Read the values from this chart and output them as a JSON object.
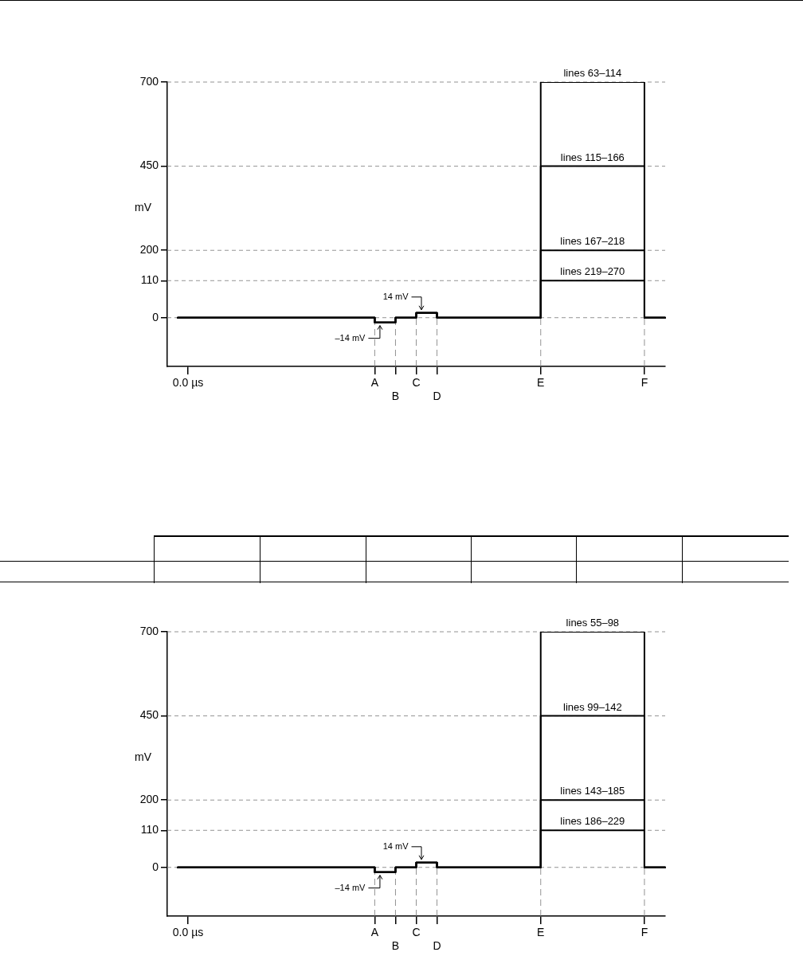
{
  "chart_data": [
    {
      "type": "step",
      "categories": [
        null,
        null,
        "0.0 µs",
        null,
        null,
        null,
        null,
        null,
        null,
        null,
        null,
        null,
        null,
        null,
        null,
        null,
        null,
        null,
        null,
        null,
        "A",
        null,
        "B",
        null,
        "C",
        null,
        "D",
        null,
        null,
        null,
        null,
        null,
        null,
        null,
        null,
        null,
        "E",
        null,
        null,
        null,
        null,
        null,
        null,
        null,
        null,
        null,
        "F",
        null,
        null
      ],
      "ylabel": "mV",
      "ylim": [
        -145,
        700
      ],
      "yticks": [
        0,
        110,
        200,
        450,
        700
      ],
      "grid": "y",
      "legend": false,
      "marker": "none",
      "line_style": "solid",
      "ref_lines": [
        {
          "axis": "x",
          "value": "A",
          "color": "#777777",
          "line_style": "dashed"
        },
        {
          "axis": "x",
          "value": "B",
          "color": "#777777",
          "line_style": "dashed"
        },
        {
          "axis": "x",
          "value": "C",
          "color": "#777777",
          "line_style": "dashed"
        },
        {
          "axis": "x",
          "value": "D",
          "color": "#777777",
          "line_style": "dashed"
        },
        {
          "axis": "x",
          "value": "E",
          "color": "#777777",
          "line_style": "dashed"
        },
        {
          "axis": "x",
          "value": "F",
          "color": "#777777",
          "line_style": "dashed"
        }
      ],
      "annotations": [
        {
          "text": "–14 mV",
          "x": "A",
          "y": -14
        },
        {
          "text": "14 mV",
          "x": "C",
          "y": 14
        }
      ],
      "series": [
        {
          "name": "lines 63–114",
          "color": "#000000",
          "values": [
            null,
            0,
            0,
            0,
            0,
            0,
            0,
            0,
            0,
            0,
            0,
            0,
            0,
            0,
            0,
            0,
            0,
            0,
            0,
            0,
            -14,
            -14,
            0,
            0,
            14,
            14,
            0,
            0,
            0,
            0,
            0,
            0,
            0,
            0,
            0,
            0,
            700,
            700,
            700,
            700,
            700,
            700,
            700,
            700,
            700,
            700,
            0,
            0,
            0
          ]
        },
        {
          "name": "lines 115–166",
          "color": "#000000",
          "values": [
            null,
            0,
            0,
            0,
            0,
            0,
            0,
            0,
            0,
            0,
            0,
            0,
            0,
            0,
            0,
            0,
            0,
            0,
            0,
            0,
            -14,
            -14,
            0,
            0,
            14,
            14,
            0,
            0,
            0,
            0,
            0,
            0,
            0,
            0,
            0,
            0,
            450,
            450,
            450,
            450,
            450,
            450,
            450,
            450,
            450,
            450,
            0,
            0,
            0
          ]
        },
        {
          "name": "lines 167–218",
          "color": "#000000",
          "values": [
            null,
            0,
            0,
            0,
            0,
            0,
            0,
            0,
            0,
            0,
            0,
            0,
            0,
            0,
            0,
            0,
            0,
            0,
            0,
            0,
            -14,
            -14,
            0,
            0,
            14,
            14,
            0,
            0,
            0,
            0,
            0,
            0,
            0,
            0,
            0,
            0,
            200,
            200,
            200,
            200,
            200,
            200,
            200,
            200,
            200,
            200,
            0,
            0,
            0
          ]
        },
        {
          "name": "lines 219–270",
          "color": "#000000",
          "values": [
            null,
            0,
            0,
            0,
            0,
            0,
            0,
            0,
            0,
            0,
            0,
            0,
            0,
            0,
            0,
            0,
            0,
            0,
            0,
            0,
            -14,
            -14,
            0,
            0,
            14,
            14,
            0,
            0,
            0,
            0,
            0,
            0,
            0,
            0,
            0,
            0,
            110,
            110,
            110,
            110,
            110,
            110,
            110,
            110,
            110,
            110,
            0,
            0,
            0
          ]
        }
      ]
    },
    {
      "type": "step",
      "categories": [
        null,
        null,
        "0.0 µs",
        null,
        null,
        null,
        null,
        null,
        null,
        null,
        null,
        null,
        null,
        null,
        null,
        null,
        null,
        null,
        null,
        null,
        "A",
        null,
        "B",
        null,
        "C",
        null,
        "D",
        null,
        null,
        null,
        null,
        null,
        null,
        null,
        null,
        null,
        "E",
        null,
        null,
        null,
        null,
        null,
        null,
        null,
        null,
        null,
        "F",
        null,
        null
      ],
      "ylabel": "mV",
      "ylim": [
        -145,
        700
      ],
      "yticks": [
        0,
        110,
        200,
        450,
        700
      ],
      "grid": "y",
      "legend": false,
      "marker": "none",
      "line_style": "solid",
      "ref_lines": [
        {
          "axis": "x",
          "value": "A",
          "color": "#777777",
          "line_style": "dashed"
        },
        {
          "axis": "x",
          "value": "B",
          "color": "#777777",
          "line_style": "dashed"
        },
        {
          "axis": "x",
          "value": "C",
          "color": "#777777",
          "line_style": "dashed"
        },
        {
          "axis": "x",
          "value": "D",
          "color": "#777777",
          "line_style": "dashed"
        },
        {
          "axis": "x",
          "value": "E",
          "color": "#777777",
          "line_style": "dashed"
        },
        {
          "axis": "x",
          "value": "F",
          "color": "#777777",
          "line_style": "dashed"
        }
      ],
      "annotations": [
        {
          "text": "–14 mV",
          "x": "A",
          "y": -14
        },
        {
          "text": "14 mV",
          "x": "C",
          "y": 14
        }
      ],
      "series": [
        {
          "name": "lines 55–98",
          "color": "#000000",
          "values": [
            null,
            0,
            0,
            0,
            0,
            0,
            0,
            0,
            0,
            0,
            0,
            0,
            0,
            0,
            0,
            0,
            0,
            0,
            0,
            0,
            -14,
            -14,
            0,
            0,
            14,
            14,
            0,
            0,
            0,
            0,
            0,
            0,
            0,
            0,
            0,
            0,
            700,
            700,
            700,
            700,
            700,
            700,
            700,
            700,
            700,
            700,
            0,
            0,
            0
          ]
        },
        {
          "name": "lines 99–142",
          "color": "#000000",
          "values": [
            null,
            0,
            0,
            0,
            0,
            0,
            0,
            0,
            0,
            0,
            0,
            0,
            0,
            0,
            0,
            0,
            0,
            0,
            0,
            0,
            -14,
            -14,
            0,
            0,
            14,
            14,
            0,
            0,
            0,
            0,
            0,
            0,
            0,
            0,
            0,
            0,
            450,
            450,
            450,
            450,
            450,
            450,
            450,
            450,
            450,
            450,
            0,
            0,
            0
          ]
        },
        {
          "name": "lines 143–185",
          "color": "#000000",
          "values": [
            null,
            0,
            0,
            0,
            0,
            0,
            0,
            0,
            0,
            0,
            0,
            0,
            0,
            0,
            0,
            0,
            0,
            0,
            0,
            0,
            -14,
            -14,
            0,
            0,
            14,
            14,
            0,
            0,
            0,
            0,
            0,
            0,
            0,
            0,
            0,
            0,
            200,
            200,
            200,
            200,
            200,
            200,
            200,
            200,
            200,
            200,
            0,
            0,
            0
          ]
        },
        {
          "name": "lines 186–229",
          "color": "#000000",
          "values": [
            null,
            0,
            0,
            0,
            0,
            0,
            0,
            0,
            0,
            0,
            0,
            0,
            0,
            0,
            0,
            0,
            0,
            0,
            0,
            0,
            -14,
            -14,
            0,
            0,
            14,
            14,
            0,
            0,
            0,
            0,
            0,
            0,
            0,
            0,
            0,
            0,
            110,
            110,
            110,
            110,
            110,
            110,
            110,
            110,
            110,
            110,
            0,
            0,
            0
          ]
        }
      ]
    }
  ]
}
